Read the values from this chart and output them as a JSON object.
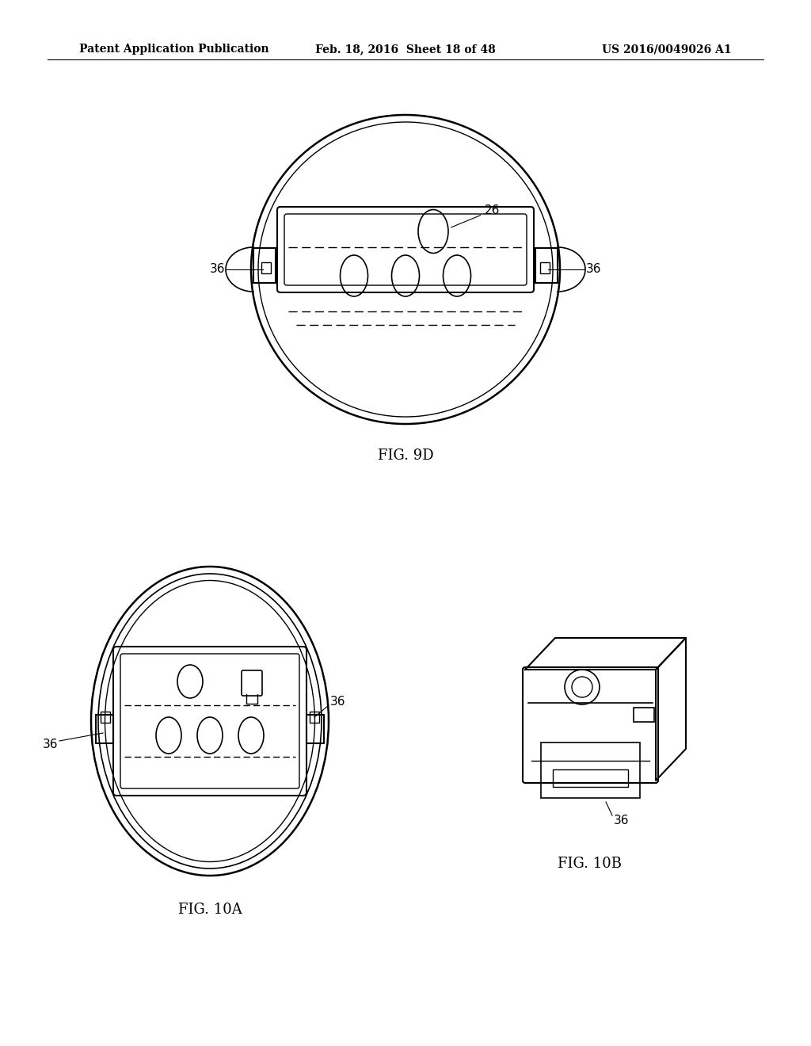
{
  "bg_color": "#ffffff",
  "header_left": "Patent Application Publication",
  "header_mid": "Feb. 18, 2016  Sheet 18 of 48",
  "header_right": "US 2016/0049026 A1",
  "fig_9d_label": "FIG. 9D",
  "fig_10a_label": "FIG. 10A",
  "fig_10b_label": "FIG. 10B",
  "line_color": "#000000",
  "line_width": 1.5,
  "annotation_fontsize": 11,
  "header_fontsize": 10,
  "fig_label_fontsize": 13
}
